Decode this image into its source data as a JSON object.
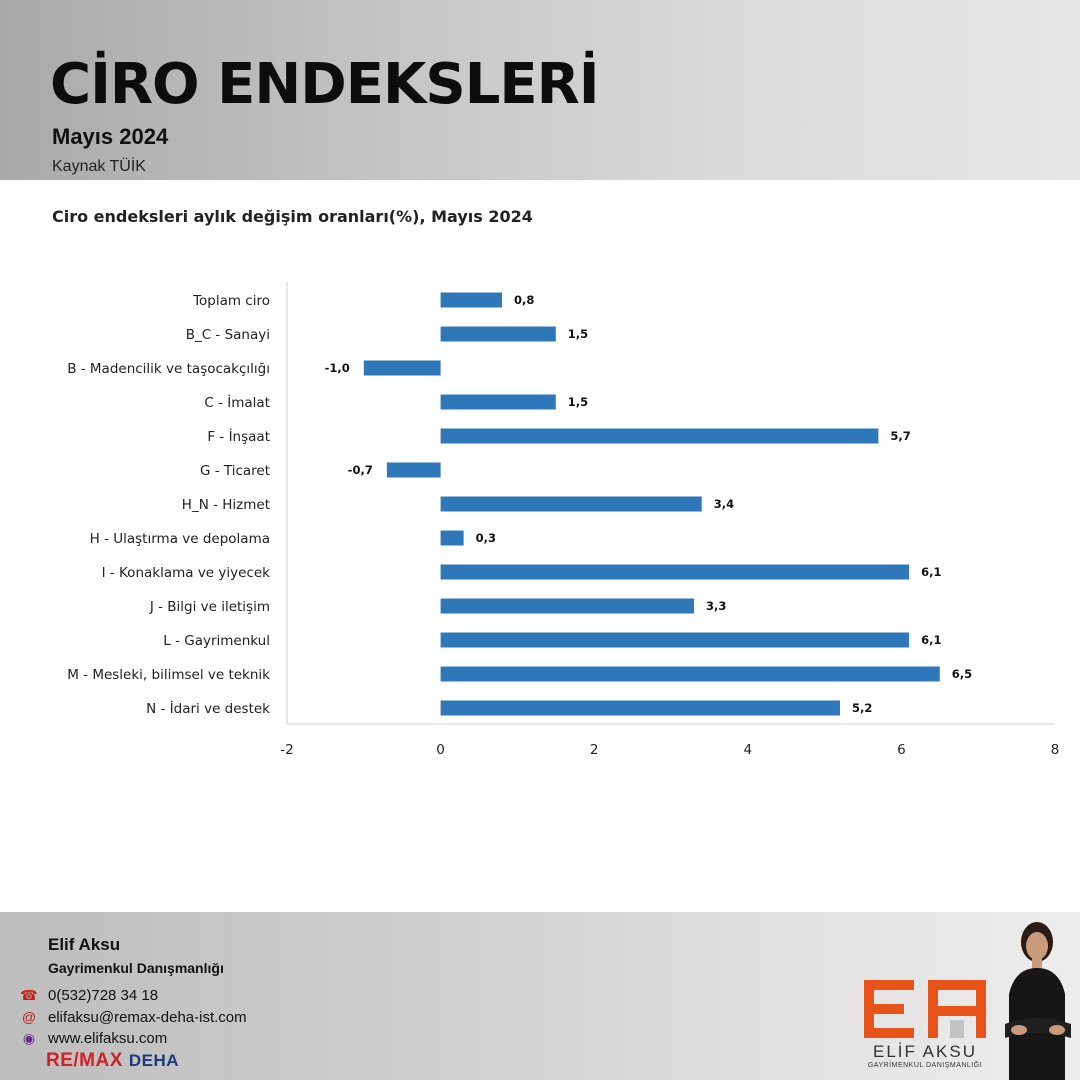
{
  "header": {
    "title": "CİRO ENDEKSLERİ",
    "period": "Mayıs 2024",
    "source": "Kaynak TÜİK"
  },
  "chart_data": {
    "type": "bar",
    "orientation": "horizontal",
    "title": "Ciro endeksleri aylık değişim oranları(%), Mayıs 2024",
    "categories": [
      "Toplam ciro",
      "B_C - Sanayi",
      "B - Madencilik ve taşocakçılığı",
      "C - İmalat",
      "F - İnşaat",
      "G - Ticaret",
      "H_N - Hizmet",
      "H - Ulaştırma ve depolama",
      "I - Konaklama ve yiyecek",
      "J - Bilgi ve iletişim",
      "L - Gayrimenkul",
      "M - Mesleki, bilimsel ve teknik",
      "N - İdari ve destek"
    ],
    "values": [
      0.8,
      1.5,
      -1.0,
      1.5,
      5.7,
      -0.7,
      3.4,
      0.3,
      6.1,
      3.3,
      6.1,
      6.5,
      5.2
    ],
    "value_labels": [
      "0,8",
      "1,5",
      "-1,0",
      "1,5",
      "5,7",
      "-0,7",
      "3,4",
      "0,3",
      "6,1",
      "3,3",
      "6,1",
      "6,5",
      "5,2"
    ],
    "xlim": [
      -2,
      8
    ],
    "xticks": [
      -2,
      0,
      2,
      4,
      6,
      8
    ],
    "xtick_labels": [
      "-2",
      "0",
      "2",
      "4",
      "6",
      "8"
    ],
    "xlabel": "",
    "ylabel": "",
    "grid": false,
    "bar_color": "#2e77b8"
  },
  "footer": {
    "name": "Elif Aksu",
    "role": "Gayrimenkul Danışmanlığı",
    "phone": "0(532)728 34 18",
    "email": "elifaksu@remax-deha-ist.com",
    "website": "www.elifaksu.com",
    "brand_re": "RE/MAX",
    "brand_office": "DEHA",
    "logo_name": "ELİF AKSU",
    "logo_sub": "GAYRİMENKUL DANIŞMANLIĞI",
    "icons": [
      "phone-icon",
      "mail-icon",
      "globe-icon"
    ]
  }
}
